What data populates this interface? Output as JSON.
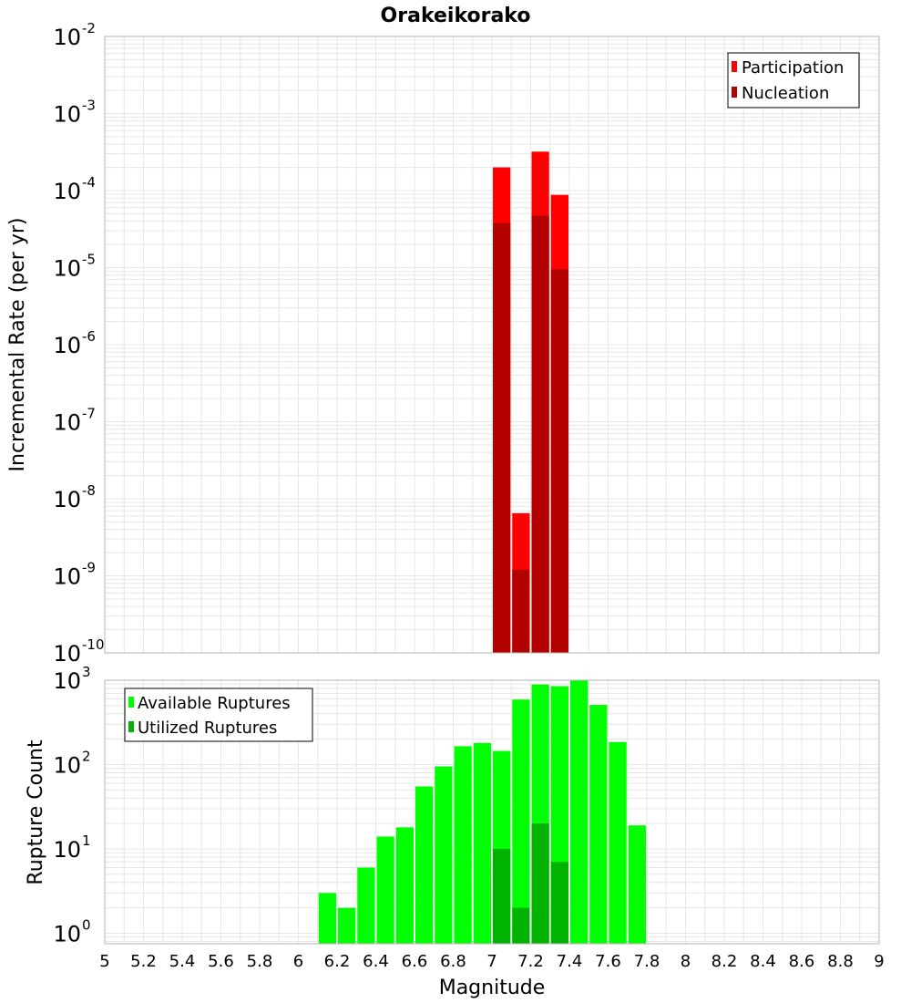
{
  "chart_title": "Orakeikorako",
  "colors": {
    "participation": "#ff0000",
    "nucleation": "#b30000",
    "available": "#00ff00",
    "utilized": "#00b300",
    "grid": "#e6e6e6",
    "frame": "#b3b3b3"
  },
  "chart_data": [
    {
      "type": "bar",
      "title": "Orakeikorako",
      "xlabel": "",
      "ylabel": "Incremental Rate (per yr)",
      "yscale": "log",
      "xlim": [
        5,
        9
      ],
      "ylim": [
        1e-10,
        0.01
      ],
      "ytick_exponents": [
        "-10",
        "-9",
        "-8",
        "-7",
        "-6",
        "-5",
        "-4",
        "-3",
        "-2"
      ],
      "legend_position": "top-right",
      "series": [
        {
          "name": "Participation",
          "x": [
            7.05,
            7.15,
            7.25,
            7.35
          ],
          "values": [
            0.0002,
            6.5e-09,
            0.00032,
            8.8e-05
          ]
        },
        {
          "name": "Nucleation",
          "x": [
            7.05,
            7.15,
            7.25,
            7.35
          ],
          "values": [
            3.8e-05,
            1.2e-09,
            4.7e-05,
            9.5e-06
          ]
        }
      ]
    },
    {
      "type": "bar",
      "title": "",
      "xlabel": "Magnitude",
      "ylabel": "Rupture Count",
      "yscale": "log",
      "xlim": [
        5,
        9
      ],
      "ylim": [
        0.75,
        1000
      ],
      "ytick_exponents": [
        "0",
        "1",
        "2",
        "3"
      ],
      "xtick_labels": [
        "5",
        "5.2",
        "5.4",
        "5.6",
        "5.8",
        "6",
        "6.2",
        "6.4",
        "6.6",
        "6.8",
        "7",
        "7.2",
        "7.4",
        "7.6",
        "7.8",
        "8",
        "8.2",
        "8.4",
        "8.6",
        "8.8",
        "9"
      ],
      "legend_position": "top-left",
      "series": [
        {
          "name": "Available Ruptures",
          "x": [
            6.15,
            6.25,
            6.35,
            6.45,
            6.55,
            6.65,
            6.75,
            6.85,
            6.95,
            7.05,
            7.15,
            7.25,
            7.35,
            7.45,
            7.55,
            7.65,
            7.75
          ],
          "values": [
            3,
            2,
            6,
            14,
            18,
            55,
            95,
            165,
            180,
            145,
            590,
            890,
            850,
            1000,
            510,
            185,
            19
          ]
        },
        {
          "name": "Utilized Ruptures",
          "x": [
            7.05,
            7.15,
            7.25,
            7.35
          ],
          "values": [
            10,
            2,
            20,
            7
          ]
        }
      ]
    }
  ]
}
